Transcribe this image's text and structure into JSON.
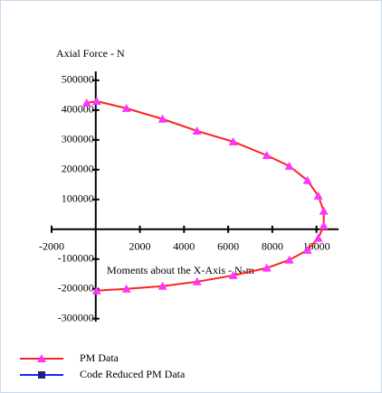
{
  "chart_data": {
    "type": "line",
    "x_label": "Moments about the X-Axis - N-m",
    "y_label": "Axial Force - N",
    "x": [
      -410,
      40,
      1390,
      3030,
      4590,
      6230,
      7750,
      8770,
      9590,
      10080,
      10330,
      10330,
      10080,
      9590,
      8770,
      7750,
      6230,
      4590,
      3030,
      1390,
      40
    ],
    "series": [
      {
        "name": "PM Data",
        "color": "#ff2020",
        "marker_color": "#ff33ff",
        "values": [
          424000,
          430000,
          406000,
          370000,
          330000,
          294000,
          248000,
          212000,
          164000,
          112000,
          61000,
          12000,
          -30000,
          -70000,
          -103000,
          -130000,
          -155000,
          -176000,
          -191000,
          -200000,
          -206000
        ]
      },
      {
        "name": "Code Reduced PM Data",
        "color": "#2020ff",
        "marker_color": "#202080",
        "values": [
          null,
          null,
          null,
          null,
          null,
          null,
          null,
          null,
          null,
          null,
          null,
          null,
          null,
          null,
          null,
          null,
          null,
          null,
          null,
          null,
          null
        ]
      }
    ],
    "xlim": [
      -2000,
      11000
    ],
    "xticks": [
      -2000,
      2000,
      4000,
      6000,
      8000,
      10000
    ],
    "ylim": [
      -310000,
      530000
    ],
    "yticks": [
      500000,
      400000,
      300000,
      200000,
      100000,
      -100000,
      -200000,
      -300000
    ]
  }
}
